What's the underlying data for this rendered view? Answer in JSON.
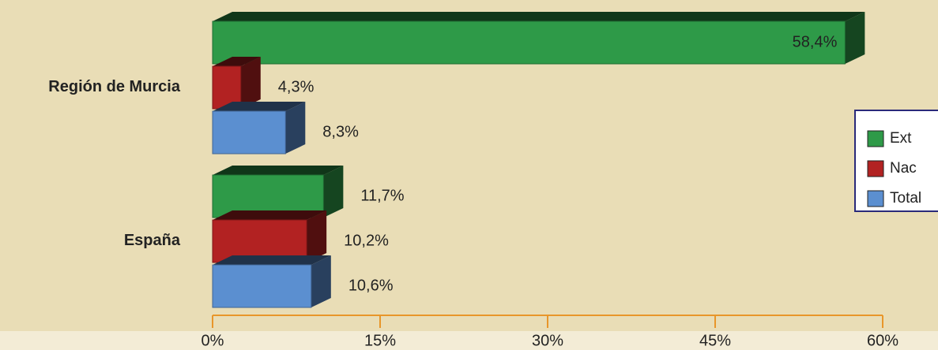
{
  "chart_data": {
    "type": "bar",
    "orientation": "horizontal",
    "categories": [
      "Región de Murcia",
      "España"
    ],
    "series": [
      {
        "name": "Ext",
        "color": "#2e9a48",
        "values": [
          58.4,
          11.7
        ],
        "value_labels": [
          "58,4%",
          "11,7%"
        ]
      },
      {
        "name": "Nac",
        "color": "#b22222",
        "values": [
          4.3,
          10.2
        ],
        "value_labels": [
          "4,3%",
          "10,2%"
        ]
      },
      {
        "name": "Total",
        "color": "#5b8fd0",
        "values": [
          8.3,
          10.6
        ],
        "value_labels": [
          "8,3%",
          "10,6%"
        ]
      }
    ],
    "xlim": [
      0,
      60
    ],
    "xticks": [
      {
        "value": 0,
        "label": "0%"
      },
      {
        "value": 15,
        "label": "15%"
      },
      {
        "value": 30,
        "label": "30%"
      },
      {
        "value": 45,
        "label": "45%"
      },
      {
        "value": 60,
        "label": "60%"
      }
    ],
    "legend": "right"
  }
}
